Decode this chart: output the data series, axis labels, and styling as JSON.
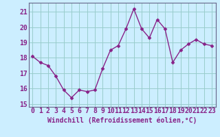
{
  "x": [
    0,
    1,
    2,
    3,
    4,
    5,
    6,
    7,
    8,
    9,
    10,
    11,
    12,
    13,
    14,
    15,
    16,
    17,
    18,
    19,
    20,
    21,
    22,
    23
  ],
  "y": [
    18.1,
    17.7,
    17.5,
    16.8,
    15.9,
    15.4,
    15.9,
    15.8,
    15.9,
    17.3,
    18.5,
    18.8,
    19.9,
    21.2,
    19.9,
    19.3,
    20.5,
    19.9,
    17.7,
    18.5,
    18.9,
    19.2,
    18.9,
    18.8
  ],
  "line_color": "#882288",
  "marker": "D",
  "marker_size": 2.5,
  "background_color": "#cceeff",
  "grid_color": "#99cccc",
  "xlabel": "Windchill (Refroidissement éolien,°C)",
  "xlabel_fontsize": 7,
  "xlabel_color": "#882288",
  "tick_color": "#882288",
  "ylim": [
    14.8,
    21.6
  ],
  "xlim": [
    -0.5,
    23.5
  ],
  "yticks": [
    15,
    16,
    17,
    18,
    19,
    20,
    21
  ],
  "xticks": [
    0,
    1,
    2,
    3,
    4,
    5,
    6,
    7,
    8,
    9,
    10,
    11,
    12,
    13,
    14,
    15,
    16,
    17,
    18,
    19,
    20,
    21,
    22,
    23
  ],
  "tick_fontsize": 7,
  "line_width": 1.0,
  "spine_color": "#666688"
}
